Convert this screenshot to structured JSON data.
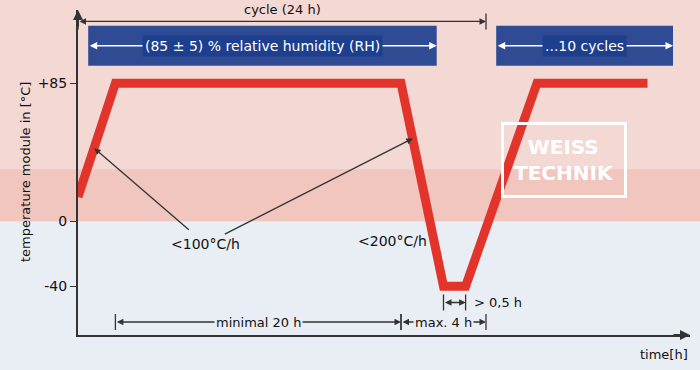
{
  "chart_data": {
    "type": "line",
    "xlabel": "time[h]",
    "ylabel": "temperature module in [°C]",
    "x": [
      0,
      2.2,
      19,
      21.5,
      22.8,
      27,
      33.5
    ],
    "values": [
      15,
      85,
      85,
      -40,
      -40,
      85,
      85
    ],
    "color": "#e3342b",
    "xlim": [
      0,
      36
    ],
    "ylim": [
      -70,
      130
    ],
    "yticks": [
      {
        "value": 85,
        "label": "+85"
      },
      0,
      -40
    ],
    "grid": false,
    "tick_labels": "y",
    "bands": [
      {
        "text": "(85 ± 5) % relative humidity (RH)",
        "x": [
          0.6,
          21.1
        ],
        "y": 108
      },
      {
        "text": "...10 cycles",
        "x": [
          24.6,
          35
        ],
        "y": 108
      }
    ],
    "spans": [
      {
        "text": "cycle (24 h)",
        "x": [
          0,
          24
        ],
        "y": 123
      },
      {
        "text": "minimal 20 h",
        "x": [
          2.2,
          19
        ],
        "y": -62
      },
      {
        "text": "max. 4 h",
        "x": [
          19,
          24
        ],
        "y": -62
      },
      {
        "text": "> 0,5 h",
        "x": [
          21.5,
          22.8
        ],
        "y": -50
      }
    ],
    "notes": [
      {
        "text": "<100°C/h",
        "x": 7.5,
        "y": -14,
        "points": [
          [
            0.95,
            45
          ],
          [
            19.7,
            51
          ]
        ]
      },
      {
        "text": "<200°C/h",
        "x": 18.5,
        "y": -12,
        "points": []
      }
    ],
    "logo": [
      "WEISS",
      "TECHNIK"
    ]
  }
}
